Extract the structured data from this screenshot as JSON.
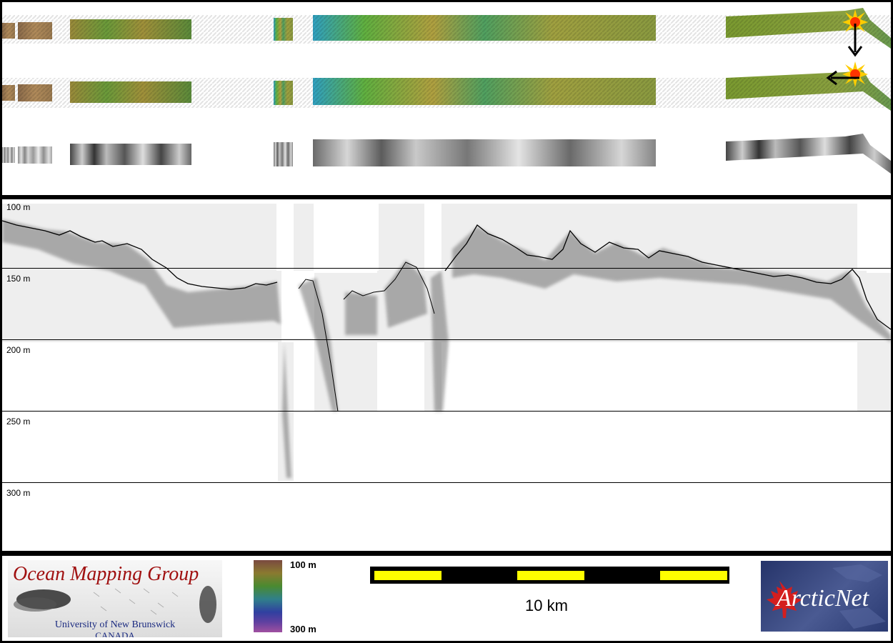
{
  "depth_axis": {
    "labels": [
      "100 m",
      "150 m",
      "200 m",
      "250 m",
      "300 m"
    ]
  },
  "strips": {
    "rows": [
      "color-shaded-bathymetry-sun-from-north",
      "color-shaded-bathymetry-sun-from-east",
      "backscatter-mosaic"
    ]
  },
  "sun_icons": [
    "sun-icon-with-down-arrow",
    "sun-icon-with-left-arrow"
  ],
  "logo_omg": {
    "title": "Ocean Mapping Group",
    "university": "University of New Brunswick",
    "country": "CANADA"
  },
  "colorbar": {
    "top_label": "100 m",
    "bottom_label": "300 m"
  },
  "scalebar": {
    "label": "10 km",
    "colors": [
      "#000000",
      "#ffff00"
    ]
  },
  "logo_arcticnet": {
    "text": "ArcticNet"
  },
  "colors": {
    "panel_bg": "#ffffff",
    "frame": "#000000",
    "profile_bg": "#eeeeee"
  }
}
